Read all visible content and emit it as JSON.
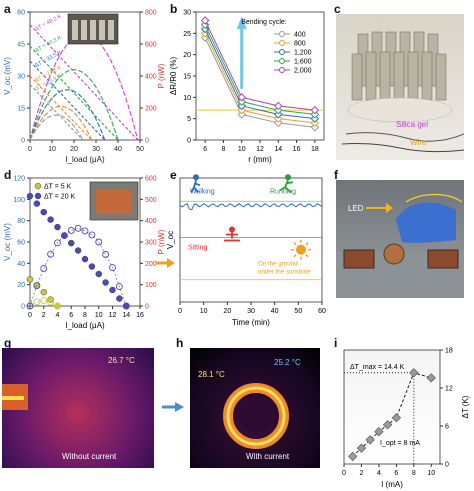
{
  "labels": {
    "a": "a",
    "b": "b",
    "c": "c",
    "d": "d",
    "e": "e",
    "f": "f",
    "g": "g",
    "h": "h",
    "i": "i"
  },
  "colors": {
    "red": "#e5322d",
    "blue": "#2a6cc4",
    "yellow": "#f0b41c",
    "green": "#2e9a3c",
    "orange": "#f0a020"
  },
  "photos": {
    "c": {
      "silica": "Silica gel",
      "wire": "Wire"
    },
    "f": {
      "led": "LED"
    },
    "g": {
      "temp": "26.7 °C",
      "caption": "Without current"
    },
    "h": {
      "temp_hot": "28.1 °C",
      "temp_cold": "25.2 °C",
      "caption": "With current"
    }
  },
  "arrows": {
    "d_to_e": "right-arrow-orange",
    "g_to_h": "right-arrow-blue"
  },
  "chart_data": [
    {
      "id": "a",
      "type": "line",
      "xlabel": "I_load (μA)",
      "ylabel_left": "V_oc (mV)",
      "ylabel_right": "P (nW)",
      "xlim": [
        0,
        50
      ],
      "ylim_left": [
        0,
        60
      ],
      "ylim_right": [
        0,
        800
      ],
      "xticks": [
        0,
        10,
        20,
        30,
        40,
        50
      ],
      "yticks_left": [
        0,
        15,
        30,
        45,
        60
      ],
      "yticks_right": [
        0,
        200,
        400,
        600,
        800
      ],
      "series": [
        {
          "name": "ΔT = 49.2 K",
          "color": "#d63bd0",
          "V": [
            [
              0,
              54
            ],
            [
              49,
              0
            ]
          ],
          "P": [
            [
              0,
              0
            ],
            [
              12,
              440
            ],
            [
              25,
              662
            ],
            [
              37,
              495
            ],
            [
              49,
              0
            ]
          ]
        },
        {
          "name": "ΔT = 40.3 K",
          "color": "#2ea84a",
          "V": [
            [
              0,
              44
            ],
            [
              40,
              0
            ]
          ],
          "P": [
            [
              0,
              0
            ],
            [
              10,
              330
            ],
            [
              20,
              440
            ],
            [
              30,
              330
            ],
            [
              40,
              0
            ]
          ]
        },
        {
          "name": "ΔT = 33.5 K",
          "color": "#2a6cc4",
          "V": [
            [
              0,
              37
            ],
            [
              34,
              0
            ]
          ],
          "P": [
            [
              0,
              0
            ],
            [
              8.5,
              235
            ],
            [
              17,
              314
            ],
            [
              25.5,
              235
            ],
            [
              34,
              0
            ]
          ]
        },
        {
          "name": "ΔT = 27.6 K",
          "color": "#f08a1c",
          "V": [
            [
              0,
              30
            ],
            [
              28,
              0
            ]
          ],
          "P": [
            [
              0,
              0
            ],
            [
              7,
              158
            ],
            [
              14,
              210
            ],
            [
              21,
              158
            ],
            [
              28,
              0
            ]
          ]
        },
        {
          "name": "ΔT = 23.9 K",
          "color": "#999999",
          "V": [
            [
              0,
              26
            ],
            [
              24,
              0
            ]
          ],
          "P": [
            [
              0,
              0
            ],
            [
              6,
              117
            ],
            [
              12,
              156
            ],
            [
              18,
              117
            ],
            [
              24,
              0
            ]
          ]
        }
      ]
    },
    {
      "id": "b",
      "type": "line",
      "xlabel": "r (mm)",
      "ylabel": "ΔR/R0 (%)",
      "xlim": [
        5,
        19
      ],
      "ylim": [
        0,
        30
      ],
      "xticks": [
        6,
        8,
        10,
        12,
        14,
        16,
        18
      ],
      "yticks": [
        0,
        5,
        10,
        15,
        20,
        25,
        30
      ],
      "legend_title": "Bending cycle:",
      "hline": 7,
      "x": [
        6,
        10,
        14,
        18
      ],
      "series": [
        {
          "name": "400",
          "color": "#999999",
          "values": [
            24,
            6,
            4,
            3
          ]
        },
        {
          "name": "800",
          "color": "#f0a020",
          "values": [
            25,
            7,
            5,
            4
          ]
        },
        {
          "name": "1,200",
          "color": "#2a6cc4",
          "values": [
            26,
            8,
            6,
            5
          ]
        },
        {
          "name": "1,600",
          "color": "#2ea84a",
          "values": [
            27,
            9,
            7,
            6
          ]
        },
        {
          "name": "2,000",
          "color": "#b040c0",
          "values": [
            28,
            10,
            8,
            7
          ]
        }
      ]
    },
    {
      "id": "d",
      "type": "scatter",
      "xlabel": "I_load (μA)",
      "ylabel_left": "V_oc (mV)",
      "ylabel_right": "P (nW)",
      "xlim": [
        0,
        16
      ],
      "ylim_left": [
        0,
        120
      ],
      "ylim_right": [
        0,
        600
      ],
      "xticks": [
        0,
        2,
        4,
        6,
        8,
        10,
        12,
        14,
        16
      ],
      "yticks_left": [
        0,
        20,
        40,
        60,
        80,
        100,
        120
      ],
      "yticks_right": [
        0,
        100,
        200,
        300,
        400,
        500,
        600
      ],
      "series": [
        {
          "name": "ΔT = 5 K",
          "color": "#c8c83c",
          "I": [
            0,
            1,
            2,
            3,
            4
          ],
          "V": [
            25,
            19,
            13,
            6,
            0
          ],
          "P": [
            0,
            19,
            26,
            18,
            0
          ]
        },
        {
          "name": "ΔT = 20 K",
          "color": "#4a4ab8",
          "I": [
            0,
            1,
            2,
            3,
            4,
            5,
            6,
            7,
            8,
            9,
            10,
            11,
            12,
            13,
            14
          ],
          "V": [
            103,
            96,
            88,
            81,
            74,
            66,
            59,
            52,
            44,
            37,
            30,
            22,
            15,
            7,
            0
          ],
          "P": [
            0,
            96,
            176,
            243,
            296,
            330,
            354,
            364,
            352,
            333,
            300,
            242,
            180,
            91,
            0
          ]
        }
      ]
    },
    {
      "id": "e",
      "type": "line",
      "xlabel": "Time (min)",
      "ylabel": "V_oc",
      "xlim": [
        0,
        60
      ],
      "xticks": [
        0,
        10,
        20,
        30,
        40,
        50,
        60
      ],
      "series": [
        {
          "name": "Walking",
          "color": "#2a6cc4",
          "level": 0.78
        },
        {
          "name": "Running",
          "color": "#2e9a3c",
          "level": 0.78
        },
        {
          "name": "Sitting",
          "color": "#e5322d",
          "level": 0.52
        },
        {
          "name": "On the ground under the sunshine",
          "color": "#f0a020",
          "level": 0.18
        }
      ]
    },
    {
      "id": "i",
      "type": "scatter",
      "xlabel": "I (mA)",
      "ylabel": "ΔT (K)",
      "xlim": [
        0,
        11
      ],
      "ylim": [
        0,
        18
      ],
      "xticks": [
        0,
        2,
        4,
        6,
        8,
        10
      ],
      "yticks": [
        0,
        6,
        12,
        18
      ],
      "annotation_max": "ΔT_max = 14.4 K",
      "annotation_opt": "I_opt = 8 mA",
      "x": [
        1,
        2,
        3,
        4,
        5,
        6,
        8,
        10
      ],
      "values": [
        1.2,
        2.5,
        3.8,
        5.1,
        6.2,
        7.3,
        14.4,
        13.6
      ]
    }
  ]
}
